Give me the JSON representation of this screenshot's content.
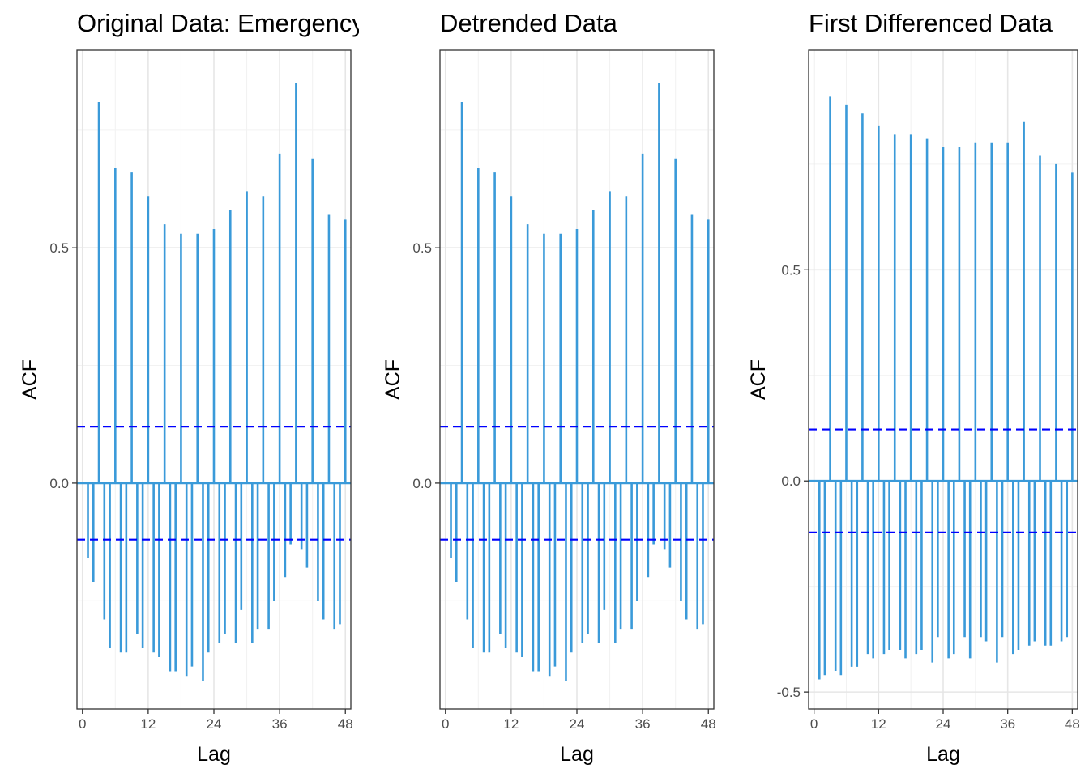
{
  "colors": {
    "bar": "#3a9ad9",
    "ci": "#0000ff",
    "grid_major": "#e6e6e6",
    "grid_minor": "#f2f2f2",
    "panel_border": "#333333",
    "tick_text": "#4d4d4d"
  },
  "chart_data": [
    {
      "type": "bar",
      "title": "Original Data: Emergency",
      "xlabel": "Lag",
      "ylabel": "ACF",
      "xlim": [
        -1,
        49
      ],
      "ylim": [
        -0.48,
        0.92
      ],
      "xticks": [
        0,
        12,
        24,
        36,
        48
      ],
      "yticks": [
        0.0,
        0.5
      ],
      "ytick_labels": [
        "0.0",
        "0.5"
      ],
      "confidence_band": 0.12,
      "grid": true,
      "x": [
        1,
        2,
        3,
        4,
        5,
        6,
        7,
        8,
        9,
        10,
        11,
        12,
        13,
        14,
        15,
        16,
        17,
        18,
        19,
        20,
        21,
        22,
        23,
        24,
        25,
        26,
        27,
        28,
        29,
        30,
        31,
        32,
        33,
        34,
        35,
        36,
        37,
        38,
        39,
        40,
        41,
        42,
        43,
        44,
        45,
        46,
        47,
        48
      ],
      "values": [
        -0.16,
        -0.21,
        0.81,
        -0.29,
        -0.35,
        0.67,
        -0.36,
        -0.36,
        0.66,
        -0.32,
        -0.35,
        0.61,
        -0.36,
        -0.37,
        0.55,
        -0.4,
        -0.4,
        0.53,
        -0.41,
        -0.39,
        0.53,
        -0.42,
        -0.36,
        0.54,
        -0.34,
        -0.32,
        0.58,
        -0.34,
        -0.27,
        0.62,
        -0.34,
        -0.31,
        0.61,
        -0.31,
        -0.25,
        0.7,
        -0.2,
        -0.13,
        0.85,
        -0.14,
        -0.18,
        0.69,
        -0.25,
        -0.29,
        0.57,
        -0.31,
        -0.3,
        0.56
      ]
    },
    {
      "type": "bar",
      "title": "Detrended Data",
      "xlabel": "Lag",
      "ylabel": "ACF",
      "xlim": [
        -1,
        49
      ],
      "ylim": [
        -0.48,
        0.92
      ],
      "xticks": [
        0,
        12,
        24,
        36,
        48
      ],
      "yticks": [
        0.0,
        0.5
      ],
      "ytick_labels": [
        "0.0",
        "0.5"
      ],
      "confidence_band": 0.12,
      "grid": true,
      "x": [
        1,
        2,
        3,
        4,
        5,
        6,
        7,
        8,
        9,
        10,
        11,
        12,
        13,
        14,
        15,
        16,
        17,
        18,
        19,
        20,
        21,
        22,
        23,
        24,
        25,
        26,
        27,
        28,
        29,
        30,
        31,
        32,
        33,
        34,
        35,
        36,
        37,
        38,
        39,
        40,
        41,
        42,
        43,
        44,
        45,
        46,
        47,
        48
      ],
      "values": [
        -0.16,
        -0.21,
        0.81,
        -0.29,
        -0.35,
        0.67,
        -0.36,
        -0.36,
        0.66,
        -0.32,
        -0.35,
        0.61,
        -0.36,
        -0.37,
        0.55,
        -0.4,
        -0.4,
        0.53,
        -0.41,
        -0.39,
        0.53,
        -0.42,
        -0.36,
        0.54,
        -0.34,
        -0.32,
        0.58,
        -0.34,
        -0.27,
        0.62,
        -0.34,
        -0.31,
        0.61,
        -0.31,
        -0.25,
        0.7,
        -0.2,
        -0.13,
        0.85,
        -0.14,
        -0.18,
        0.69,
        -0.25,
        -0.29,
        0.57,
        -0.31,
        -0.3,
        0.56
      ]
    },
    {
      "type": "bar",
      "title": "First Differenced Data",
      "xlabel": "Lag",
      "ylabel": "ACF",
      "xlim": [
        -1,
        49
      ],
      "ylim": [
        -0.54,
        1.02
      ],
      "xticks": [
        0,
        12,
        24,
        36,
        48
      ],
      "yticks": [
        -0.5,
        0.0,
        0.5
      ],
      "ytick_labels": [
        "-0.5",
        "0.0",
        "0.5"
      ],
      "confidence_band": 0.122,
      "grid": true,
      "x": [
        1,
        2,
        3,
        4,
        5,
        6,
        7,
        8,
        9,
        10,
        11,
        12,
        13,
        14,
        15,
        16,
        17,
        18,
        19,
        20,
        21,
        22,
        23,
        24,
        25,
        26,
        27,
        28,
        29,
        30,
        31,
        32,
        33,
        34,
        35,
        36,
        37,
        38,
        39,
        40,
        41,
        42,
        43,
        44,
        45,
        46,
        47,
        48
      ],
      "values": [
        -0.47,
        -0.46,
        0.91,
        -0.45,
        -0.46,
        0.89,
        -0.44,
        -0.44,
        0.87,
        -0.41,
        -0.42,
        0.84,
        -0.41,
        -0.4,
        0.82,
        -0.4,
        -0.42,
        0.82,
        -0.41,
        -0.4,
        0.81,
        -0.43,
        -0.37,
        0.79,
        -0.42,
        -0.41,
        0.79,
        -0.37,
        -0.42,
        0.8,
        -0.37,
        -0.38,
        0.8,
        -0.43,
        -0.37,
        0.8,
        -0.41,
        -0.4,
        0.85,
        -0.39,
        -0.38,
        0.77,
        -0.39,
        -0.39,
        0.75,
        -0.38,
        -0.37,
        0.73
      ]
    }
  ]
}
